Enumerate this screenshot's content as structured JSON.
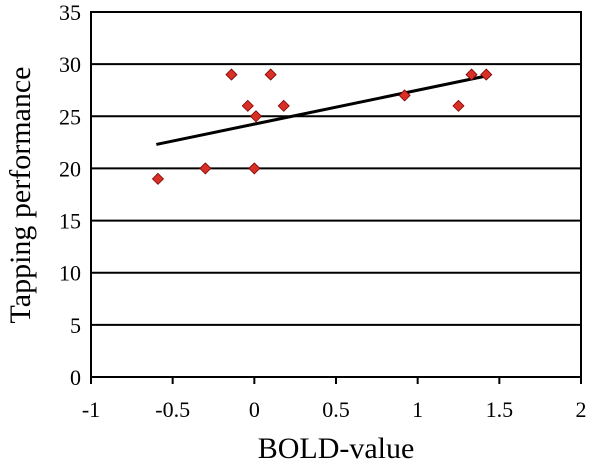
{
  "chart_data": {
    "type": "scatter",
    "xlabel": "BOLD-value",
    "ylabel": "Tapping performance",
    "xlim": [
      -1,
      2
    ],
    "ylim": [
      0,
      35
    ],
    "xticks": [
      "-1",
      "-0.5",
      "0",
      "0.5",
      "1",
      "1.5",
      "2"
    ],
    "yticks": [
      "0",
      "5",
      "10",
      "15",
      "20",
      "25",
      "30",
      "35"
    ],
    "grid": "horizontal",
    "marker_color": "#d93025",
    "series": [
      {
        "points": [
          {
            "x": -0.59,
            "y": 19
          },
          {
            "x": -0.3,
            "y": 20
          },
          {
            "x": 0.0,
            "y": 20
          },
          {
            "x": -0.14,
            "y": 29
          },
          {
            "x": 0.1,
            "y": 29
          },
          {
            "x": -0.04,
            "y": 26
          },
          {
            "x": 0.18,
            "y": 26
          },
          {
            "x": 0.01,
            "y": 25
          },
          {
            "x": 0.92,
            "y": 27
          },
          {
            "x": 1.25,
            "y": 26
          },
          {
            "x": 1.33,
            "y": 29
          },
          {
            "x": 1.42,
            "y": 29
          }
        ]
      }
    ],
    "trendline": {
      "x": [
        -0.6,
        1.43
      ],
      "y": [
        22.3,
        28.9
      ]
    }
  }
}
